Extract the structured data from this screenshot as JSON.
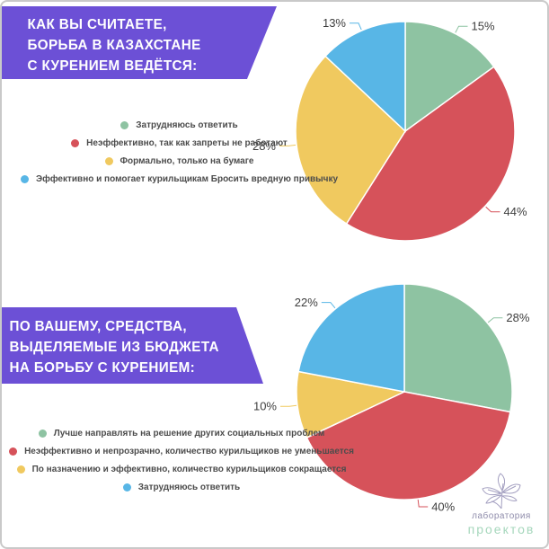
{
  "page": {
    "background": "#ffffff",
    "border_color": "#c9c9c9"
  },
  "banners": [
    {
      "lines": [
        "КАК ВЫ СЧИТАЕТЕ,",
        "БОРЬБА В КАЗАХСТАНЕ",
        "С КУРЕНИЕМ ВЕДЁТСЯ:"
      ],
      "bg": "#6c50d6",
      "text_color": "#ffffff"
    },
    {
      "lines": [
        "ПО ВАШЕМУ, СРЕДСТВА,",
        "ВЫДЕЛЯЕМЫЕ ИЗ БЮДЖЕТА",
        "НА БОРЬБУ С КУРЕНИЕМ:"
      ],
      "bg": "#6c50d6",
      "text_color": "#ffffff"
    }
  ],
  "labels": {
    "percent_suffix": "%"
  },
  "chart_data": [
    {
      "type": "pie",
      "title": "КАК ВЫ СЧИТАЕТЕ, БОРЬБА В КАЗАХСТАНЕ С КУРЕНИЕМ ВЕДЁТСЯ:",
      "start_angle_deg": 0,
      "direction": "clockwise",
      "label_format": "percent",
      "legend_position": "left",
      "slices": [
        {
          "label": "Затрудняюсь ответить",
          "value": 15,
          "color": "#8ec3a2"
        },
        {
          "label": "Неэффективно, так как запреты не работают",
          "value": 44,
          "color": "#d6525a"
        },
        {
          "label": "Формально, только на бумаге",
          "value": 28,
          "color": "#f0c95f"
        },
        {
          "label": "Эффективно и помогает курильщикам Бросить вредную привычку",
          "value": 13,
          "color": "#58b6e6"
        }
      ]
    },
    {
      "type": "pie",
      "title": "ПО ВАШЕМУ, СРЕДСТВА, ВЫДЕЛЯЕМЫЕ ИЗ БЮДЖЕТА НА БОРЬБУ С КУРЕНИЕМ:",
      "start_angle_deg": 0,
      "direction": "clockwise",
      "label_format": "percent",
      "legend_position": "left",
      "slices": [
        {
          "label": "Лучше направлять на решение других социальных проблем",
          "value": 28,
          "color": "#8ec3a2"
        },
        {
          "label": "Неэффективно и непрозрачно, количество курильщиков не уменьшается",
          "value": 40,
          "color": "#d6525a"
        },
        {
          "label": "По назначению и эффективно, количество курильщиков сокращается",
          "value": 10,
          "color": "#f0c95f"
        },
        {
          "label": "Затрудняюсь ответить",
          "value": 22,
          "color": "#58b6e6"
        }
      ]
    }
  ],
  "logo": {
    "line1": "лаборатория",
    "line2": "проектов",
    "color_line1": "#8f8cab",
    "color_line2": "#a6d7bc",
    "icon_color": "#a39fc0"
  }
}
